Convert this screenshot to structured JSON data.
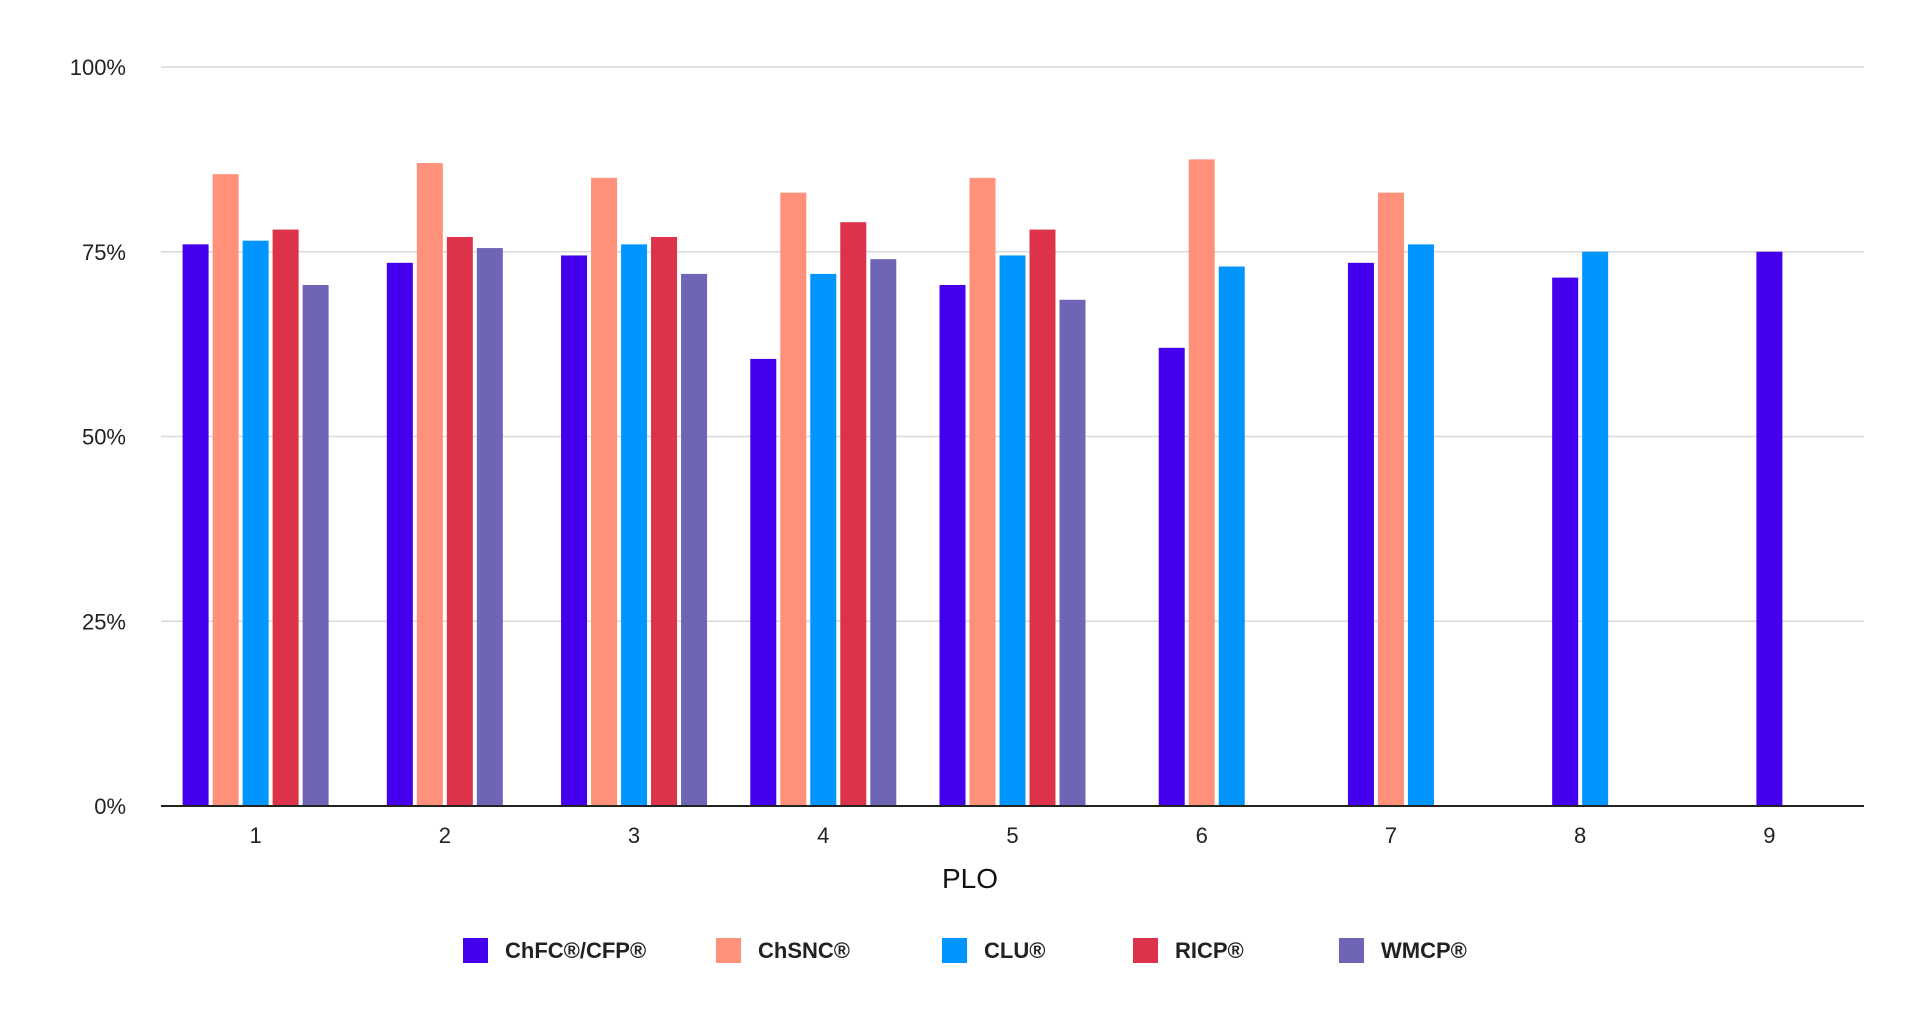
{
  "chart_data": {
    "type": "bar",
    "title": "",
    "xlabel": "PLO",
    "ylabel": "",
    "categories": [
      "1",
      "2",
      "3",
      "4",
      "5",
      "6",
      "7",
      "8",
      "9"
    ],
    "ylim": [
      0,
      100
    ],
    "yticks": [
      "0%",
      "25%",
      "50%",
      "75%",
      "100%"
    ],
    "ytick_values": [
      0,
      25,
      50,
      75,
      100
    ],
    "grid": true,
    "legend_position": "bottom",
    "series": [
      {
        "name": "ChFC®/CFP®",
        "color": "#4400ee",
        "values": [
          76,
          73.5,
          74.5,
          60.5,
          70.5,
          62,
          73.5,
          71.5,
          75
        ]
      },
      {
        "name": "ChSNC®",
        "color": "#ff917a",
        "values": [
          85.5,
          87,
          85,
          83,
          85,
          87.5,
          83,
          null,
          null
        ]
      },
      {
        "name": "CLU®",
        "color": "#0095ff",
        "values": [
          76.5,
          null,
          76,
          72,
          74.5,
          73,
          76,
          75,
          null
        ]
      },
      {
        "name": "RICP®",
        "color": "#dc334a",
        "values": [
          78,
          77,
          77,
          79,
          78,
          null,
          null,
          null,
          null
        ]
      },
      {
        "name": "WMCP®",
        "color": "#6e65b6",
        "values": [
          70.5,
          75.5,
          72,
          74,
          68.5,
          null,
          null,
          null,
          null
        ]
      }
    ]
  }
}
